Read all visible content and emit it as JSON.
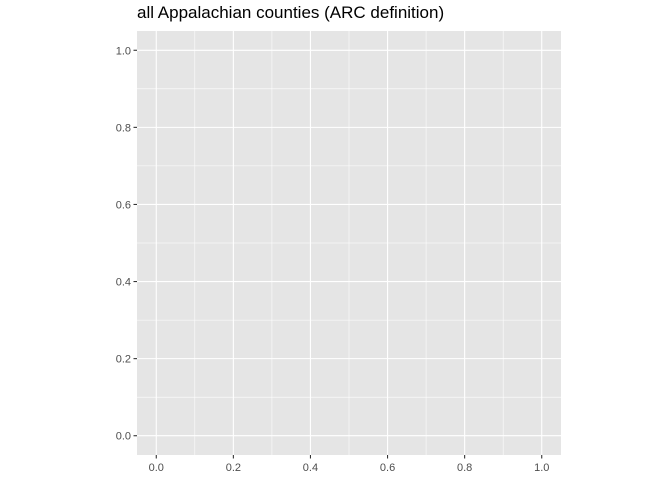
{
  "chart_data": {
    "type": "scatter",
    "title": "all Appalachian counties (ARC definition)",
    "xlabel": "",
    "ylabel": "",
    "xlim": [
      -0.05,
      1.05
    ],
    "ylim": [
      -0.05,
      1.05
    ],
    "x_ticks": [
      0.0,
      0.2,
      0.4,
      0.6,
      0.8,
      1.0
    ],
    "y_ticks": [
      0.0,
      0.2,
      0.4,
      0.6,
      0.8,
      1.0
    ],
    "x_tick_labels": [
      "0.0",
      "0.2",
      "0.4",
      "0.6",
      "0.8",
      "1.0"
    ],
    "y_tick_labels": [
      "0.0",
      "0.2",
      "0.4",
      "0.6",
      "0.8",
      "1.0"
    ],
    "points": [],
    "grid": true,
    "panel_background": "#e5e5e5",
    "grid_color": "#ffffff",
    "tick_color": "#333333",
    "tick_label_color": "#4d4d4d"
  }
}
